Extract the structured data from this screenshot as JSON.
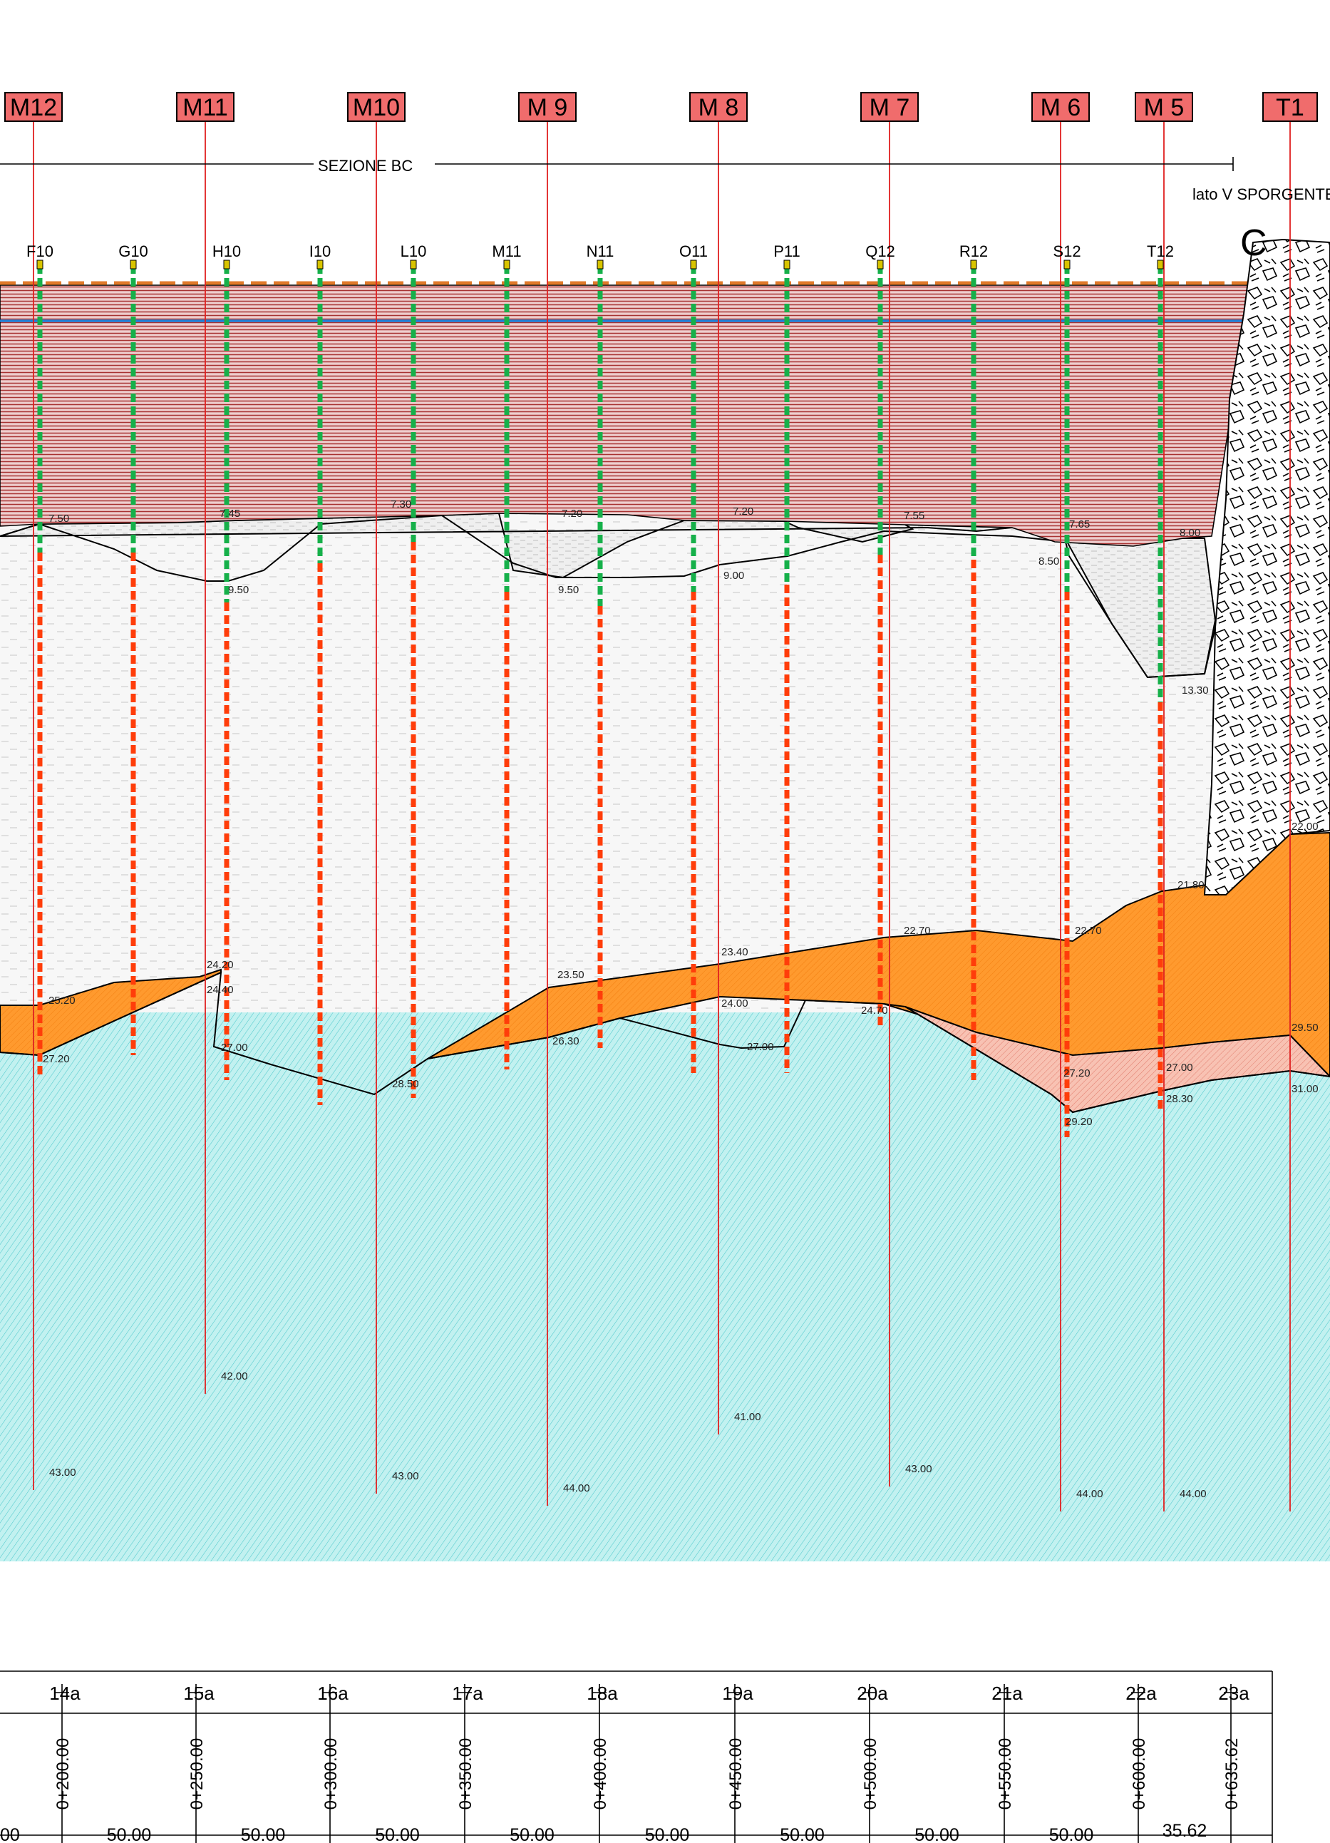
{
  "section": {
    "title": "SEZIONE BC",
    "side_note": "lato V SPORGENTE",
    "end_marker": "C"
  },
  "colors": {
    "fill_layer": "#e9c9c9",
    "fill_lines": "#b23a3a",
    "water_line": "#1e7fd6",
    "sand": "#f5f5f5",
    "orange_layer": "#ff9a2e",
    "pink_layer": "#f8b8a8",
    "clay": "#bff0ef",
    "probe_green": "#16b04a",
    "probe_red": "#ff3d0a",
    "tag_fill": "#f06c6c",
    "drill_line": "#e02020"
  },
  "tags": [
    {
      "label": "M12",
      "depth": "43.00"
    },
    {
      "label": "M11",
      "depth": "42.00"
    },
    {
      "label": "M10",
      "depth": "43.00"
    },
    {
      "label": "M 9",
      "depth": "44.00"
    },
    {
      "label": "M 8",
      "depth": "41.00"
    },
    {
      "label": "M 7",
      "depth": "43.00"
    },
    {
      "label": "M 6",
      "depth": "44.00"
    },
    {
      "label": "M 5",
      "depth": "44.00"
    },
    {
      "label": "T1",
      "depth": ""
    }
  ],
  "boreholes": [
    "F10",
    "G10",
    "H10",
    "I10",
    "L10",
    "M11",
    "N11",
    "O11",
    "P11",
    "Q12",
    "R12",
    "S12",
    "T12"
  ],
  "depth_labels": [
    "7.50",
    "7.45",
    "7.30",
    "7.20",
    "7.20",
    "7.55",
    "7.65",
    "8.00",
    "8.50",
    "9.50",
    "9.50",
    "9.00",
    "13.30",
    "21.80",
    "22.00",
    "22.70",
    "22.70",
    "23.40",
    "23.50",
    "24.00",
    "24.20",
    "24.40",
    "24.70",
    "25.20",
    "26.30",
    "27.00",
    "27.00",
    "27.00",
    "27.20",
    "27.20",
    "28.30",
    "28.50",
    "29.20",
    "29.50",
    "31.00"
  ],
  "table": {
    "stations": [
      "14a",
      "15a",
      "16a",
      "17a",
      "18a",
      "19a",
      "20a",
      "21a",
      "22a",
      "23a"
    ],
    "progressives": [
      "0+200.00",
      "0+250.00",
      "0+300.00",
      "0+350.00",
      "0+400.00",
      "0+450.00",
      "0+500.00",
      "0+550.00",
      "0+600.00",
      "0+635.62"
    ],
    "first_dist": "00",
    "distances": [
      "50.00",
      "50.00",
      "50.00",
      "50.00",
      "50.00",
      "50.00",
      "50.00",
      "50.00",
      "35.62"
    ]
  }
}
